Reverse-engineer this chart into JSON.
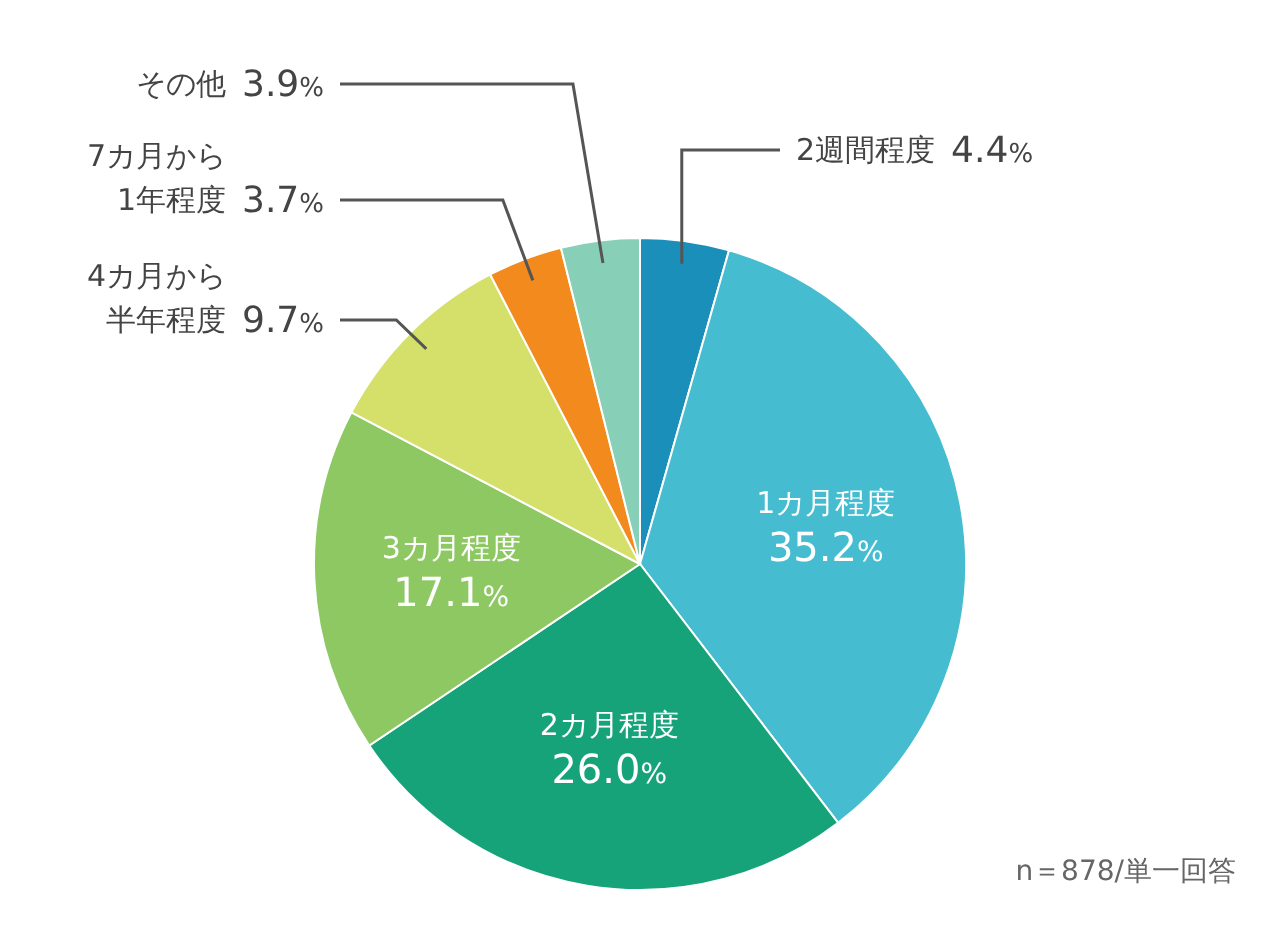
{
  "chart_data": {
    "type": "pie",
    "categories": [
      "2週間程度",
      "1カ月程度",
      "2カ月程度",
      "3カ月程度",
      "4カ月から半年程度",
      "7カ月から1年程度",
      "その他"
    ],
    "values": [
      4.4,
      35.2,
      26.0,
      17.1,
      9.7,
      3.7,
      3.9
    ],
    "value_labels": [
      "4.4%",
      "35.2%",
      "26.0%",
      "17.1%",
      "9.7%",
      "3.7%",
      "3.9%"
    ],
    "colors": [
      "#1a8fba",
      "#45bcd0",
      "#17a37a",
      "#8dc863",
      "#d4e06a",
      "#f28a1e",
      "#88cfb8"
    ],
    "annotations": [
      "n＝878/単一回答"
    ]
  }
}
